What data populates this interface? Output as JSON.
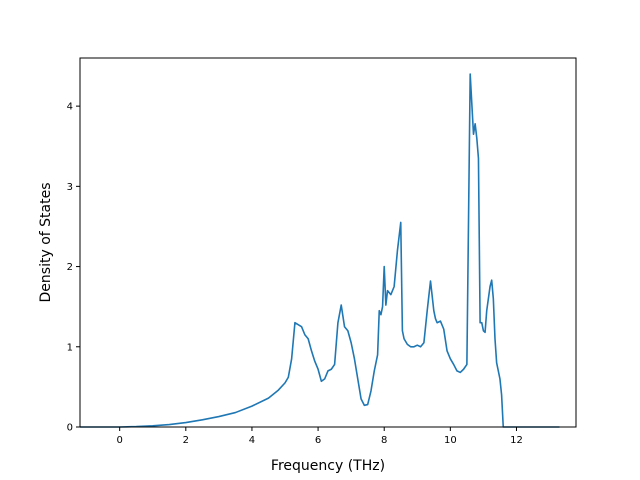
{
  "chart_data": {
    "type": "line",
    "title": "",
    "xlabel": "Frequency (THz)",
    "ylabel": "Density of States",
    "xlim": [
      -1.2,
      13.8
    ],
    "ylim": [
      0,
      4.6
    ],
    "xticks": [
      0,
      2,
      4,
      6,
      8,
      10,
      12
    ],
    "yticks": [
      0,
      1,
      2,
      3,
      4
    ],
    "grid": false,
    "line_color": "#1f77b4",
    "series": [
      {
        "x": [
          -1.2,
          0.0,
          0.5,
          1.0,
          1.5,
          2.0,
          2.5,
          3.0,
          3.5,
          4.0,
          4.5,
          4.8,
          5.0,
          5.1,
          5.2,
          5.3,
          5.5,
          5.6,
          5.7,
          5.8,
          5.9,
          6.0,
          6.1,
          6.2,
          6.3,
          6.4,
          6.5,
          6.6,
          6.7,
          6.8,
          6.9,
          7.0,
          7.1,
          7.2,
          7.3,
          7.4,
          7.5,
          7.6,
          7.7,
          7.8,
          7.85,
          7.9,
          7.95,
          8.0,
          8.05,
          8.1,
          8.2,
          8.3,
          8.4,
          8.5,
          8.55,
          8.6,
          8.7,
          8.8,
          8.9,
          9.0,
          9.1,
          9.2,
          9.3,
          9.4,
          9.5,
          9.55,
          9.6,
          9.7,
          9.8,
          9.9,
          10.0,
          10.1,
          10.2,
          10.3,
          10.4,
          10.5,
          10.6,
          10.7,
          10.75,
          10.8,
          10.85,
          10.9,
          10.95,
          11.0,
          11.05,
          11.1,
          11.2,
          11.25,
          11.3,
          11.35,
          11.4,
          11.5,
          11.55,
          11.6,
          11.7,
          11.8,
          11.9,
          12.0,
          12.5,
          13.3
        ],
        "y": [
          0.0,
          0.0,
          0.005,
          0.015,
          0.03,
          0.055,
          0.09,
          0.13,
          0.18,
          0.26,
          0.36,
          0.46,
          0.55,
          0.62,
          0.85,
          1.3,
          1.25,
          1.15,
          1.1,
          0.95,
          0.82,
          0.72,
          0.57,
          0.6,
          0.7,
          0.72,
          0.78,
          1.3,
          1.52,
          1.25,
          1.2,
          1.05,
          0.85,
          0.6,
          0.35,
          0.27,
          0.28,
          0.45,
          0.7,
          0.9,
          1.45,
          1.4,
          1.5,
          2.0,
          1.52,
          1.7,
          1.65,
          1.75,
          2.2,
          2.55,
          1.2,
          1.1,
          1.03,
          1.0,
          1.0,
          1.02,
          1.0,
          1.05,
          1.45,
          1.82,
          1.45,
          1.35,
          1.3,
          1.32,
          1.22,
          0.95,
          0.85,
          0.78,
          0.7,
          0.68,
          0.72,
          0.78,
          4.4,
          3.65,
          3.78,
          3.6,
          3.35,
          1.3,
          1.3,
          1.2,
          1.18,
          1.45,
          1.75,
          1.83,
          1.6,
          1.1,
          0.8,
          0.6,
          0.4,
          0.0,
          0.0,
          0.0,
          0.0,
          0.0,
          0.0,
          0.0
        ]
      }
    ]
  }
}
